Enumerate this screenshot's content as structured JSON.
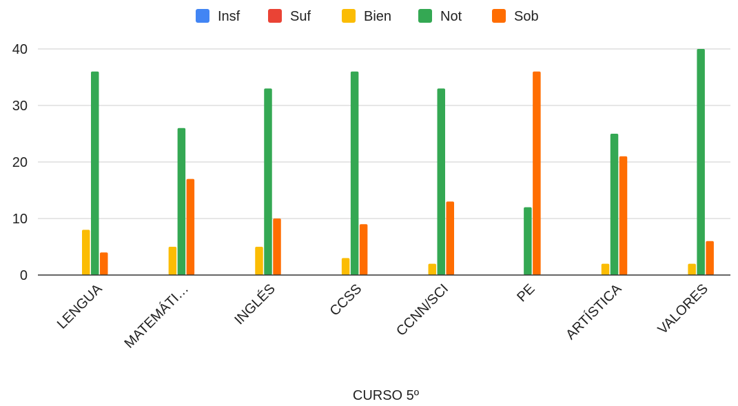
{
  "chart_data": {
    "type": "bar",
    "title": "",
    "xlabel": "CURSO 5º",
    "ylabel": "",
    "categories": [
      "LENGUA",
      "MATEMÁTI…",
      "INGLÉS",
      "CCSS",
      "CCNN/SCI",
      "PE",
      "ARTÍSTICA",
      "VALORES"
    ],
    "series": [
      {
        "name": "Insf",
        "color": "#4285f4",
        "values": [
          0,
          0,
          0,
          0,
          0,
          0,
          0,
          0
        ]
      },
      {
        "name": "Suf",
        "color": "#ea4335",
        "values": [
          0,
          0,
          0,
          0,
          0,
          0,
          0,
          0
        ]
      },
      {
        "name": "Bien",
        "color": "#fbbc04",
        "values": [
          8,
          5,
          5,
          3,
          2,
          0,
          2,
          2
        ]
      },
      {
        "name": "Not",
        "color": "#34a853",
        "values": [
          36,
          26,
          33,
          36,
          33,
          12,
          25,
          40
        ]
      },
      {
        "name": "Sob",
        "color": "#ff6d01",
        "values": [
          4,
          17,
          10,
          9,
          13,
          36,
          21,
          6
        ]
      }
    ],
    "ylim": [
      0,
      40
    ],
    "yticks": [
      0,
      10,
      20,
      30,
      40
    ],
    "grid": true,
    "legend_position": "top"
  }
}
